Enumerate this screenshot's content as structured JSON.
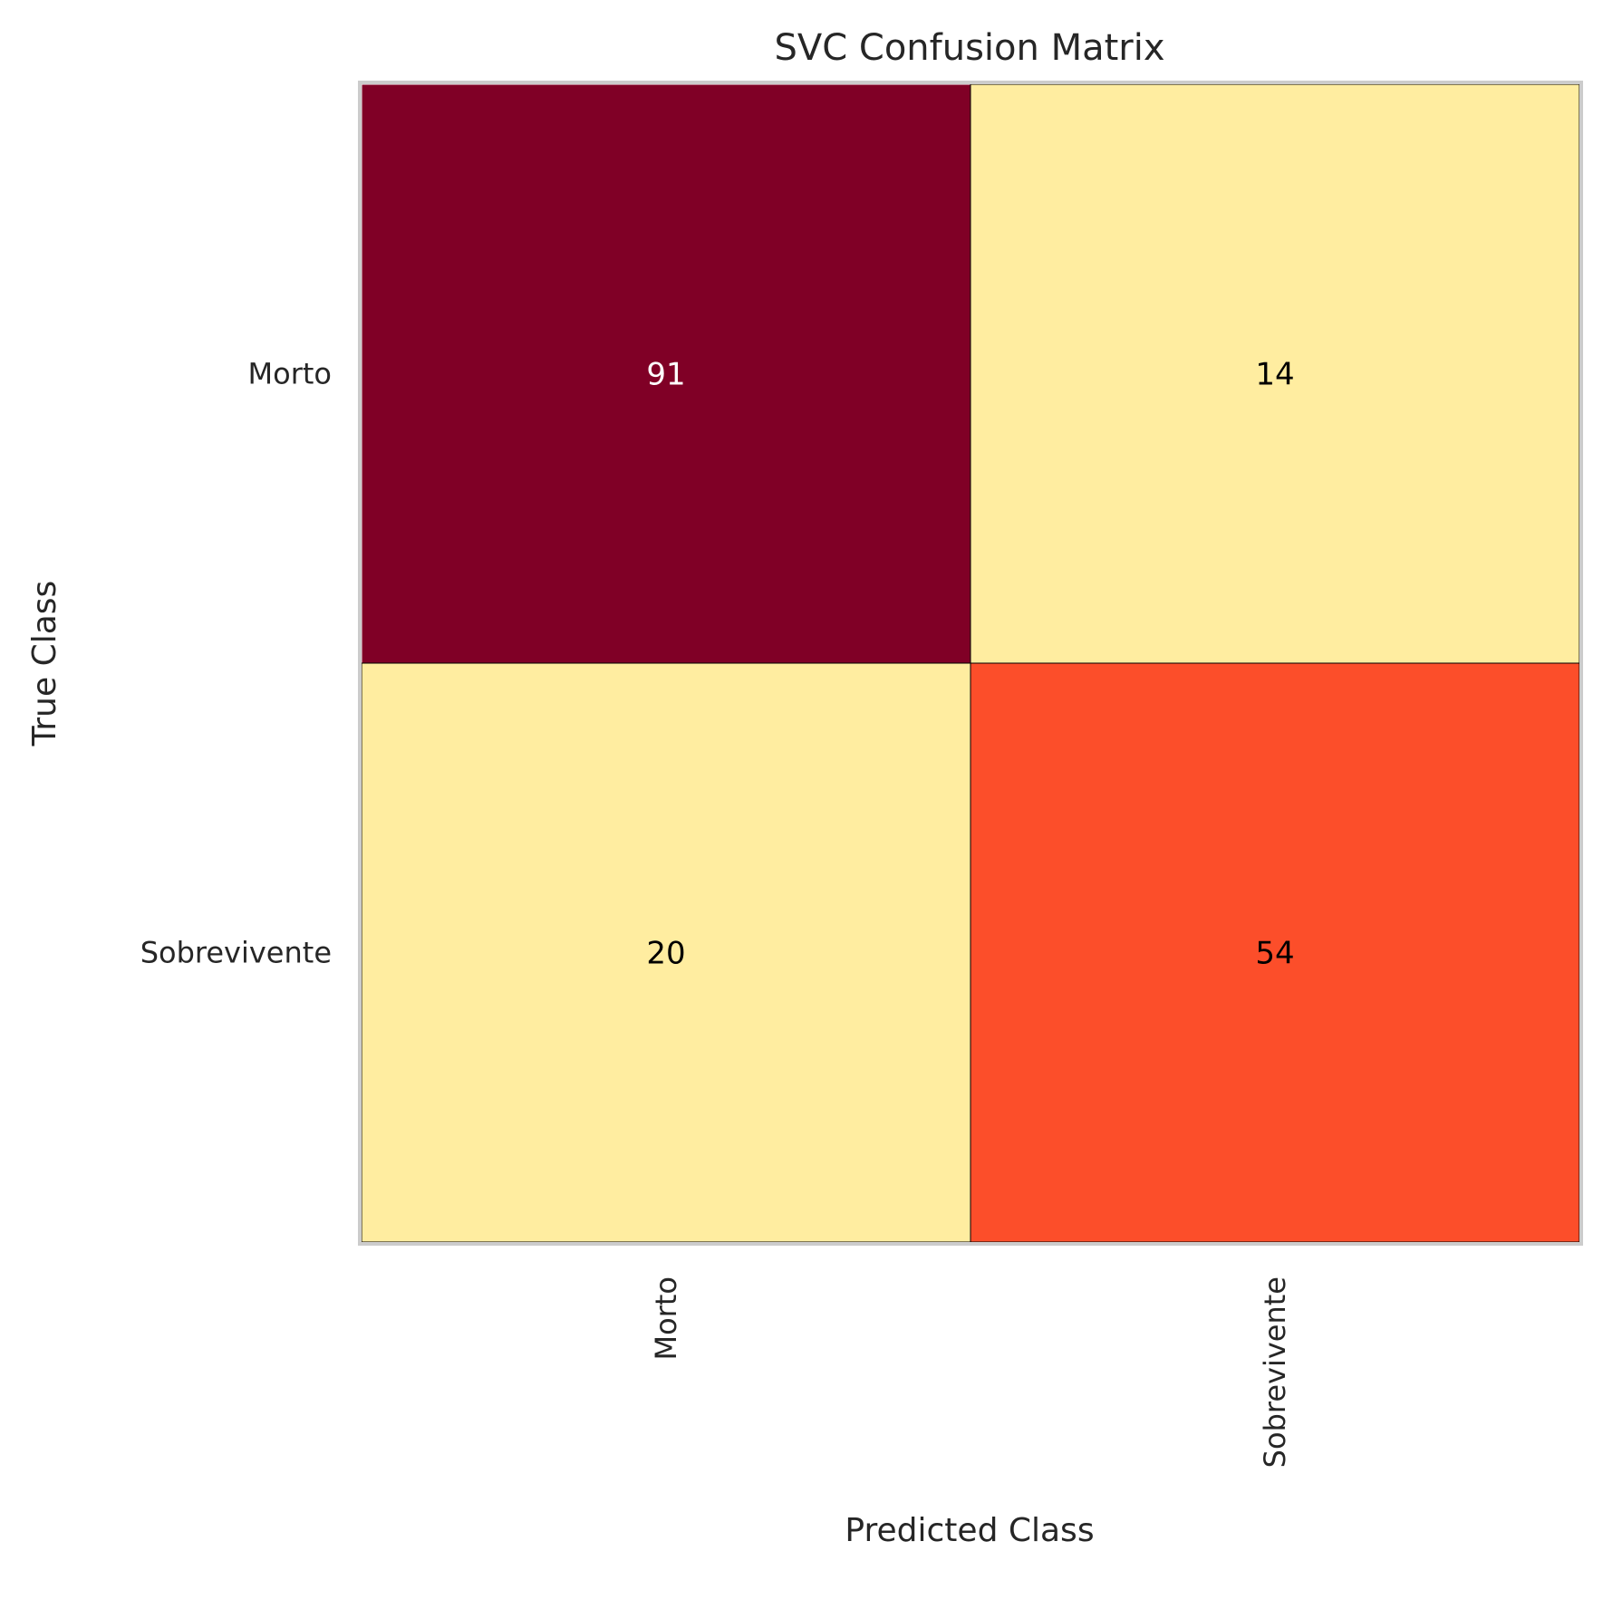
{
  "chart_data": {
    "type": "heatmap",
    "title": "SVC Confusion Matrix",
    "xlabel": "Predicted Class",
    "ylabel": "True Class",
    "x_categories": [
      "Morto",
      "Sobrevivente"
    ],
    "y_categories": [
      "Morto",
      "Sobrevivente"
    ],
    "values": [
      [
        91,
        14
      ],
      [
        20,
        54
      ]
    ],
    "colormap": "YlOrRd",
    "cell_colors": [
      [
        "#800026",
        "#ffeda0"
      ],
      [
        "#ffeda0",
        "#fc4e2a"
      ]
    ],
    "text_colors": [
      [
        "#ffffff",
        "#000000"
      ],
      [
        "#000000",
        "#000000"
      ]
    ],
    "grid": false,
    "colors": {
      "frame": "#cccccc",
      "text": "#262626"
    }
  }
}
